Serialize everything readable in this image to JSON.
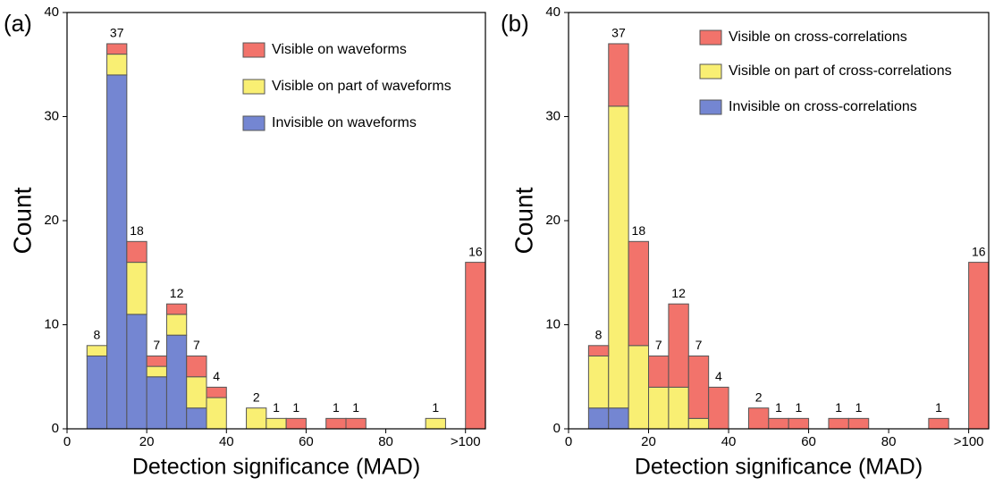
{
  "chart_data": [
    {
      "type": "histogram",
      "panel_label": "(a)",
      "xlabel": "Detection significance (MAD)",
      "ylabel": "Count",
      "bins": [
        5,
        10,
        15,
        20,
        25,
        30,
        35,
        40,
        45,
        50,
        55,
        60,
        65,
        70,
        75,
        80,
        85,
        90,
        95,
        100,
        105
      ],
      "series": [
        {
          "name": "Visible on waveforms",
          "color": "#f2736b",
          "values": [
            0,
            1,
            2,
            1,
            1,
            2,
            1,
            0,
            0,
            0,
            1,
            0,
            1,
            1,
            0,
            0,
            0,
            0,
            0,
            16
          ]
        },
        {
          "name": "Visible on part of waveforms",
          "color": "#f9ef73",
          "values": [
            1,
            2,
            5,
            1,
            2,
            3,
            3,
            0,
            2,
            1,
            0,
            0,
            0,
            0,
            0,
            0,
            0,
            1,
            0,
            0
          ]
        },
        {
          "name": "Invisible on waveforms",
          "color": "#7486d2",
          "values": [
            7,
            34,
            11,
            5,
            9,
            2,
            0,
            0,
            0,
            0,
            0,
            0,
            0,
            0,
            0,
            0,
            0,
            0,
            0,
            0
          ]
        }
      ],
      "totals": [
        8,
        37,
        18,
        7,
        12,
        7,
        4,
        null,
        2,
        1,
        1,
        null,
        1,
        1,
        null,
        null,
        null,
        1,
        null,
        16
      ],
      "xlim": [
        0,
        105
      ],
      "xticks": [
        0,
        20,
        40,
        60,
        80,
        {
          "value": 100,
          "label": ">100"
        }
      ],
      "ylim": [
        0,
        40
      ],
      "yticks": [
        0,
        10,
        20,
        30,
        40
      ]
    },
    {
      "type": "histogram",
      "panel_label": "(b)",
      "xlabel": "Detection significance (MAD)",
      "ylabel": "Count",
      "bins": [
        5,
        10,
        15,
        20,
        25,
        30,
        35,
        40,
        45,
        50,
        55,
        60,
        65,
        70,
        75,
        80,
        85,
        90,
        95,
        100,
        105
      ],
      "series": [
        {
          "name": "Visible on cross-correlations",
          "color": "#f2736b",
          "values": [
            1,
            6,
            10,
            3,
            8,
            6,
            4,
            0,
            2,
            1,
            1,
            0,
            1,
            1,
            0,
            0,
            0,
            1,
            0,
            16
          ]
        },
        {
          "name": "Visible on part of cross-correlations",
          "color": "#f9ef73",
          "values": [
            5,
            29,
            8,
            4,
            4,
            1,
            0,
            0,
            0,
            0,
            0,
            0,
            0,
            0,
            0,
            0,
            0,
            0,
            0,
            0
          ]
        },
        {
          "name": "Invisible on cross-correlations",
          "color": "#7486d2",
          "values": [
            2,
            2,
            0,
            0,
            0,
            0,
            0,
            0,
            0,
            0,
            0,
            0,
            0,
            0,
            0,
            0,
            0,
            0,
            0,
            0
          ]
        }
      ],
      "totals": [
        8,
        37,
        18,
        7,
        12,
        7,
        4,
        null,
        2,
        1,
        1,
        null,
        1,
        1,
        null,
        null,
        null,
        1,
        null,
        16
      ],
      "xlim": [
        0,
        105
      ],
      "xticks": [
        0,
        20,
        40,
        60,
        80,
        {
          "value": 100,
          "label": ">100"
        }
      ],
      "ylim": [
        0,
        40
      ],
      "yticks": [
        0,
        10,
        20,
        30,
        40
      ]
    }
  ]
}
